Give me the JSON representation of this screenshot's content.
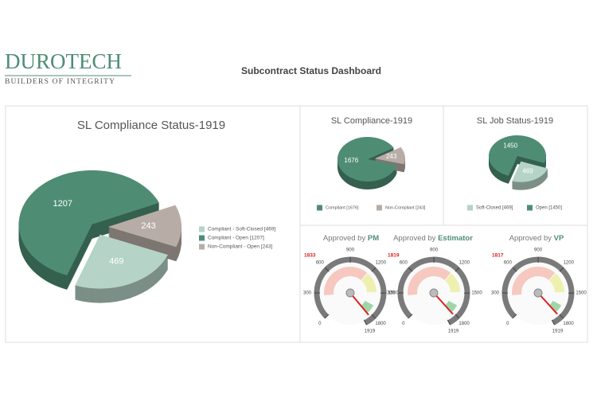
{
  "header": {
    "logo": "DUROTECH",
    "tagline": "BUILDERS OF INTEGRITY",
    "title": "Subcontract Status Dashboard"
  },
  "chart_data": [
    {
      "type": "pie",
      "title": "SL Compliance Status-1919",
      "categories": [
        "Compliant - Soft-Closed [469]",
        "Compliant - Open [1207]",
        "Non-Compliant - Open [243]"
      ],
      "values": [
        469,
        1207,
        243
      ],
      "colors": [
        "#b5d3c6",
        "#4e8d74",
        "#b8ada6"
      ]
    },
    {
      "type": "pie",
      "title": "SL Compliance-1919",
      "categories": [
        "Compliant [1676]",
        "Non-Compliant [243]"
      ],
      "values": [
        1676,
        243
      ],
      "colors": [
        "#4e8d74",
        "#b8ada6"
      ]
    },
    {
      "type": "pie",
      "title": "SL Job Status-1919",
      "categories": [
        "Soft-Closed [469]",
        "Open [1450]"
      ],
      "values": [
        469,
        1450
      ],
      "colors": [
        "#b5d3c6",
        "#4e8d74"
      ]
    },
    {
      "type": "gauge",
      "title": "Approved by",
      "subject": "PM",
      "value": 1833,
      "ylim": [
        0,
        1919
      ],
      "yticks": [
        0,
        300,
        600,
        900,
        1200,
        1500,
        1800,
        1919
      ]
    },
    {
      "type": "gauge",
      "title": "Approved by",
      "subject": "Estimator",
      "value": 1819,
      "ylim": [
        0,
        1919
      ],
      "yticks": [
        0,
        300,
        600,
        900,
        1200,
        1500,
        1800,
        1919
      ]
    },
    {
      "type": "gauge",
      "title": "Approved by",
      "subject": "VP",
      "value": 1817,
      "ylim": [
        0,
        1919
      ],
      "yticks": [
        0,
        300,
        600,
        900,
        1200,
        1500,
        1800,
        1919
      ]
    }
  ]
}
